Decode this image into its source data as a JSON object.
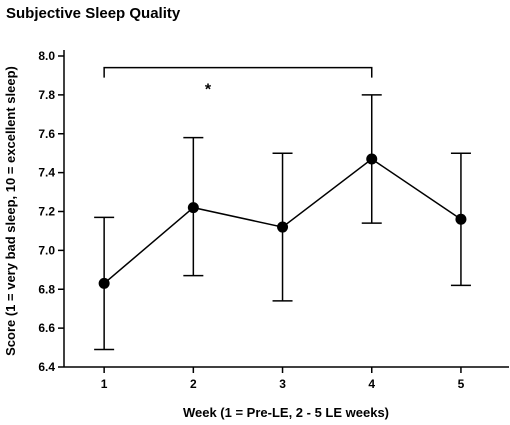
{
  "chart_data": {
    "type": "line",
    "title": "Subjective Sleep Quality",
    "xlabel": "Week (1 = Pre-LE, 2 - 5 LE weeks)",
    "ylabel": "Score (1 = very bad sleep, 10 = excellent sleep)",
    "x": [
      1,
      2,
      3,
      4,
      5
    ],
    "xticks": [
      "1",
      "2",
      "3",
      "4",
      "5"
    ],
    "xlim": [
      0.55,
      5.55
    ],
    "ylim": [
      6.4,
      8.0
    ],
    "yticks": [
      "6.4",
      "6.6",
      "6.8",
      "7.0",
      "7.2",
      "7.4",
      "7.6",
      "7.8",
      "8.0"
    ],
    "series": [
      {
        "values": [
          6.83,
          7.22,
          7.12,
          7.47,
          7.16
        ],
        "error_upper": [
          7.17,
          7.58,
          7.5,
          7.8,
          7.5
        ],
        "error_lower": [
          6.49,
          6.87,
          6.74,
          7.14,
          6.82
        ]
      }
    ],
    "annotations": [
      {
        "text": "*",
        "from_x": 1,
        "to_x": 4,
        "y": 7.94
      }
    ],
    "grid": false,
    "legend": "none",
    "color": "#000000"
  }
}
